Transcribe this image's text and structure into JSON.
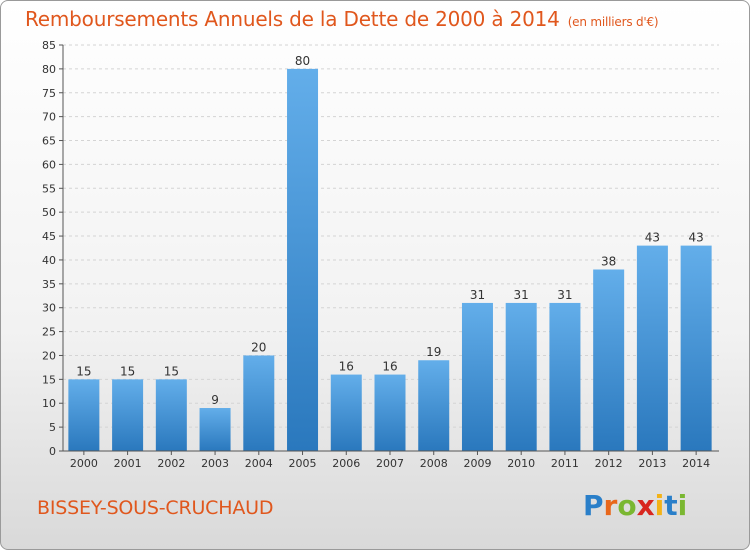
{
  "header": {
    "title": "Remboursements Annuels de la Dette de 2000 à 2014",
    "unit": "(en milliers d'€)"
  },
  "footer": {
    "commune": "BISSEY-SOUS-CRUCHAUD",
    "brand_letters": [
      "P",
      "r",
      "o",
      "x",
      "i",
      "t",
      "i"
    ],
    "brand_colors": [
      "#2a7fc9",
      "#e8671b",
      "#7ab731",
      "#d8261e",
      "#f3b217",
      "#2a7fc9",
      "#7ab731"
    ]
  },
  "colors": {
    "bar_top": "#63aeea",
    "bar_bottom": "#2a78bd",
    "title": "#e0571d"
  },
  "chart_data": {
    "type": "bar",
    "title": "Remboursements Annuels de la Dette de 2000 à 2014",
    "xlabel": "",
    "ylabel": "",
    "ylim": [
      0,
      85
    ],
    "ytick_step": 5,
    "grid": true,
    "categories": [
      "2000",
      "2001",
      "2002",
      "2003",
      "2004",
      "2005",
      "2006",
      "2007",
      "2008",
      "2009",
      "2010",
      "2011",
      "2012",
      "2013",
      "2014"
    ],
    "values": [
      15,
      15,
      15,
      9,
      20,
      80,
      16,
      16,
      19,
      31,
      31,
      31,
      38,
      43,
      43
    ]
  }
}
